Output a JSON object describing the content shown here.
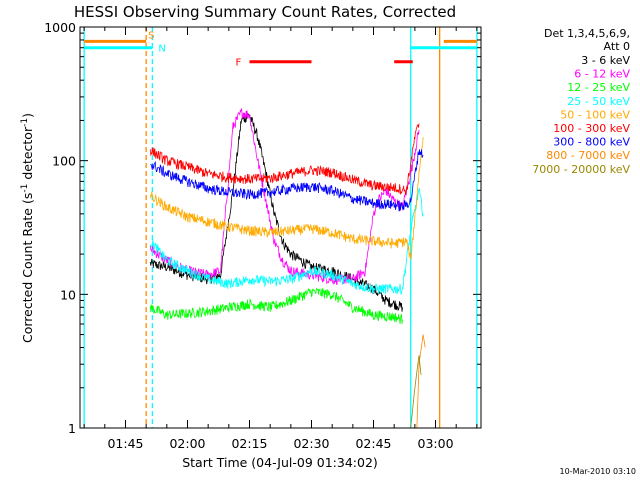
{
  "chart_data": {
    "type": "line",
    "title": "HESSI Observing Summary Count Rates, Corrected",
    "xlabel": "Start Time (04-Jul-09 01:34:02)",
    "ylabel_main": "Corrected Count Rate (s",
    "ylabel_sup1": "-1",
    "ylabel_mid": " detector",
    "ylabel_sup2": "-1",
    "ylabel_end": ")",
    "ylabel": "Corrected Count Rate (s-1 detector-1)",
    "y_scale": "log",
    "ylim": [
      1,
      1000
    ],
    "xlim": [
      "01:34",
      "03:11"
    ],
    "x_ticks": [
      "01:45",
      "02:00",
      "02:15",
      "02:30",
      "02:45",
      "03:00"
    ],
    "x_tick_minutes": [
      105,
      120,
      135,
      150,
      165,
      180
    ],
    "y_ticks": [
      {
        "label": "1",
        "value": 1
      },
      {
        "label": "10",
        "value": 10
      },
      {
        "label": "100",
        "value": 100
      },
      {
        "label": "1000",
        "value": 1000
      }
    ],
    "legend_position": "top-right",
    "legend_header": [
      "Det 1,3,4,5,6,9,",
      "Att 0"
    ],
    "series": [
      {
        "name": "3 - 6 keV",
        "color": "#000000",
        "points": [
          [
            111,
            17
          ],
          [
            115,
            16
          ],
          [
            120,
            14
          ],
          [
            125,
            13
          ],
          [
            128,
            14
          ],
          [
            131,
            60
          ],
          [
            133,
            200
          ],
          [
            135,
            220
          ],
          [
            137,
            150
          ],
          [
            139,
            80
          ],
          [
            141,
            40
          ],
          [
            143,
            25
          ],
          [
            145,
            20
          ],
          [
            150,
            16
          ],
          [
            155,
            15
          ],
          [
            160,
            13
          ],
          [
            165,
            11
          ],
          [
            168,
            9
          ],
          [
            170,
            8.5
          ],
          [
            172,
            8
          ]
        ]
      },
      {
        "name": "6 - 12 keV",
        "color": "#ff00ff",
        "points": [
          [
            111,
            22
          ],
          [
            115,
            18
          ],
          [
            120,
            15
          ],
          [
            125,
            14
          ],
          [
            128,
            15
          ],
          [
            131,
            180
          ],
          [
            133,
            230
          ],
          [
            135,
            220
          ],
          [
            137,
            100
          ],
          [
            139,
            50
          ],
          [
            141,
            25
          ],
          [
            143,
            18
          ],
          [
            145,
            15
          ],
          [
            150,
            14
          ],
          [
            155,
            13
          ],
          [
            160,
            13
          ],
          [
            163,
            15
          ],
          [
            165,
            40
          ],
          [
            166,
            50
          ],
          [
            168,
            60
          ],
          [
            170,
            50
          ],
          [
            172,
            45
          ],
          [
            174,
            80
          ],
          [
            176,
            170
          ]
        ]
      },
      {
        "name": "12 - 25 keV",
        "color": "#00ff00",
        "points": [
          [
            111,
            8
          ],
          [
            115,
            7
          ],
          [
            120,
            7.2
          ],
          [
            125,
            7.5
          ],
          [
            130,
            8
          ],
          [
            135,
            8.5
          ],
          [
            140,
            8
          ],
          [
            145,
            9
          ],
          [
            150,
            10.5
          ],
          [
            155,
            10
          ],
          [
            160,
            8
          ],
          [
            165,
            7
          ],
          [
            170,
            6.8
          ],
          [
            172,
            6.5
          ]
        ]
      },
      {
        "name": "25 - 50 keV",
        "color": "#00ffff",
        "points": [
          [
            111,
            25
          ],
          [
            115,
            18
          ],
          [
            120,
            15
          ],
          [
            125,
            13
          ],
          [
            130,
            12
          ],
          [
            135,
            13
          ],
          [
            140,
            12.5
          ],
          [
            145,
            13
          ],
          [
            150,
            15
          ],
          [
            155,
            14
          ],
          [
            160,
            12
          ],
          [
            165,
            11
          ],
          [
            170,
            11
          ],
          [
            172,
            11
          ],
          [
            174,
            30
          ],
          [
            176,
            60
          ],
          [
            177,
            40
          ]
        ]
      },
      {
        "name": "50 - 100 keV",
        "color": "#ffaa00",
        "points": [
          [
            111,
            55
          ],
          [
            115,
            45
          ],
          [
            120,
            38
          ],
          [
            125,
            35
          ],
          [
            130,
            32
          ],
          [
            135,
            30
          ],
          [
            140,
            29
          ],
          [
            145,
            30
          ],
          [
            150,
            31
          ],
          [
            155,
            29
          ],
          [
            160,
            26
          ],
          [
            165,
            25
          ],
          [
            170,
            24
          ],
          [
            173,
            25
          ],
          [
            174,
            18
          ],
          [
            176,
            80
          ],
          [
            177,
            150
          ]
        ]
      },
      {
        "name": "100 - 300 keV",
        "color": "#ff0000",
        "points": [
          [
            111,
            120
          ],
          [
            115,
            100
          ],
          [
            120,
            90
          ],
          [
            125,
            80
          ],
          [
            130,
            75
          ],
          [
            135,
            73
          ],
          [
            140,
            74
          ],
          [
            145,
            80
          ],
          [
            150,
            85
          ],
          [
            155,
            82
          ],
          [
            160,
            72
          ],
          [
            165,
            65
          ],
          [
            170,
            63
          ],
          [
            173,
            60
          ],
          [
            175,
            150
          ],
          [
            176,
            190
          ]
        ]
      },
      {
        "name": "300 - 800 keV",
        "color": "#0000ff",
        "points": [
          [
            111,
            95
          ],
          [
            115,
            80
          ],
          [
            120,
            70
          ],
          [
            125,
            62
          ],
          [
            130,
            58
          ],
          [
            135,
            56
          ],
          [
            140,
            58
          ],
          [
            145,
            62
          ],
          [
            150,
            64
          ],
          [
            155,
            60
          ],
          [
            160,
            52
          ],
          [
            165,
            48
          ],
          [
            170,
            47
          ],
          [
            172,
            45
          ],
          [
            174,
            50
          ],
          [
            176,
            120
          ],
          [
            177,
            110
          ]
        ]
      },
      {
        "name": "800 - 7000 keV",
        "color": "#ff8800",
        "points": [
          [
            175.5,
            1
          ],
          [
            176,
            3
          ],
          [
            177,
            5
          ],
          [
            177.5,
            4
          ]
        ]
      },
      {
        "name": "7000 - 20000 keV",
        "color": "#998800",
        "points": [
          [
            174,
            1
          ],
          [
            175,
            2
          ],
          [
            176,
            3.5
          ],
          [
            176.5,
            2.5
          ]
        ]
      }
    ],
    "annotations": {
      "F": {
        "label": "F",
        "color": "#ff0000",
        "level": 550,
        "segments": [
          [
            135,
            150
          ],
          [
            170,
            174.5
          ]
        ]
      },
      "S": {
        "label": "S",
        "color": "#ff8800",
        "level": 780,
        "segments": [
          [
            95,
            110
          ],
          [
            182,
            190
          ]
        ]
      },
      "N": {
        "label": "N",
        "color": "#00ffff",
        "level": 700,
        "segments": [
          [
            95,
            111.5
          ],
          [
            174,
            190
          ]
        ]
      },
      "vertical_lines": [
        {
          "t": 95,
          "color": "#00ffff",
          "style": "solid"
        },
        {
          "t": 110,
          "color": "#ff8800",
          "style": "dashed"
        },
        {
          "t": 111.5,
          "color": "#00ffff",
          "style": "dashed"
        },
        {
          "t": 174,
          "color": "#00ffff",
          "style": "solid"
        },
        {
          "t": 181,
          "color": "#ff8800",
          "style": "solid"
        },
        {
          "t": 190,
          "color": "#00ffff",
          "style": "solid"
        }
      ]
    },
    "footer_date": "10-Mar-2010 03:10"
  }
}
